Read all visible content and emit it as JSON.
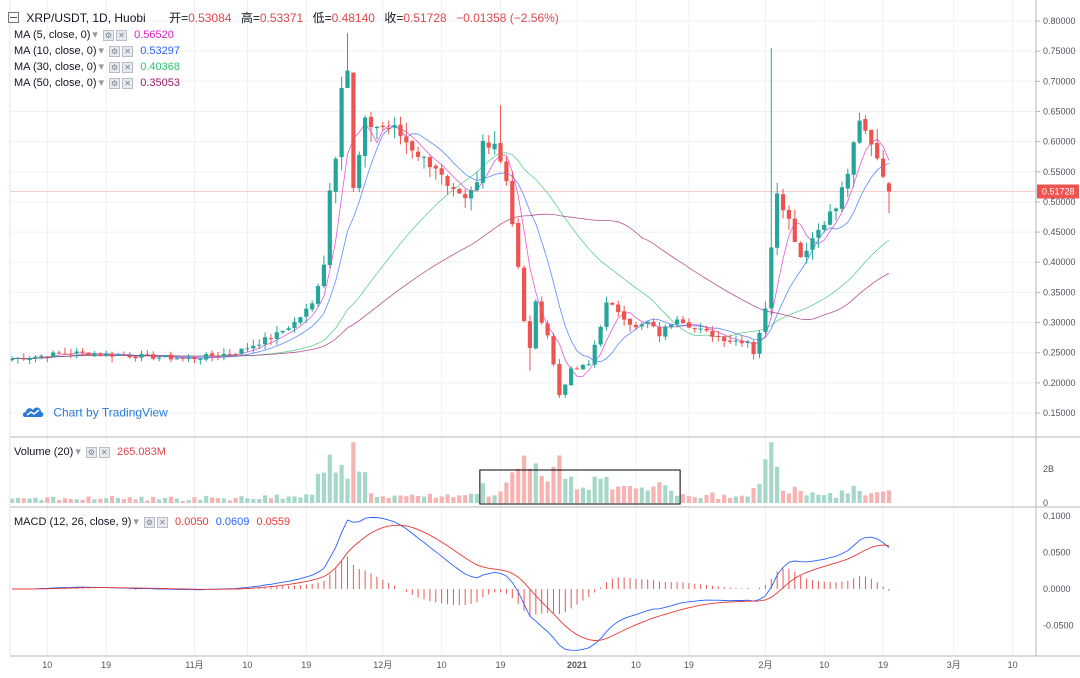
{
  "header": {
    "collapse_icon": "minus-box-icon",
    "symbol": "XRP/USDT, 1D, Huobi",
    "open_label": "开=",
    "open": "0.53084",
    "high_label": "高=",
    "high": "0.53371",
    "low_label": "低=",
    "low": "0.48140",
    "close_label": "收=",
    "close": "0.51728",
    "change": "−0.01358 (−2.56%)"
  },
  "indicators": {
    "ma5": {
      "label": "MA (5, close, 0)",
      "value": "0.56520",
      "color": "#e020c8"
    },
    "ma10": {
      "label": "MA (10, close, 0)",
      "value": "0.53297",
      "color": "#2962ff"
    },
    "ma30": {
      "label": "MA (30, close, 0)",
      "value": "0.40368",
      "color": "#2ec26a"
    },
    "ma50": {
      "label": "MA (50, close, 0)",
      "value": "0.35053",
      "color": "#9b1c6c"
    },
    "volume": {
      "label": "Volume (20)",
      "value": "265.083M"
    },
    "macd": {
      "label": "MACD (12, 26, close, 9)",
      "v1": "0.0050",
      "v2": "0.0609",
      "v3": "0.0559"
    }
  },
  "brand": {
    "text": "Chart by TradingView",
    "icon": "tradingview-cloud-icon"
  },
  "colors": {
    "up": "#26a69a",
    "down": "#ef5350",
    "up_vol": "#a5d8c9",
    "down_vol": "#f5b4b2",
    "price_line": "#ef5350",
    "macd_line": "#2962ff",
    "signal_line": "#e53935",
    "hist": "#e53935"
  },
  "price_tag": "0.51728",
  "chart_data": [
    {
      "type": "candlestick",
      "title": "XRP/USDT, 1D, Huobi",
      "ylim": [
        0.11,
        0.81
      ],
      "y_ticks": [
        "0.80000",
        "0.75000",
        "0.70000",
        "0.65000",
        "0.60000",
        "0.55000",
        "0.50000",
        "0.45000",
        "0.40000",
        "0.35000",
        "0.30000",
        "0.25000",
        "0.20000",
        "0.15000"
      ],
      "x_ticks": [
        "10",
        "19",
        "11月",
        "10",
        "19",
        "12月",
        "10",
        "19",
        "2021",
        "10",
        "19",
        "2月",
        "10",
        "19",
        "3月",
        "10"
      ],
      "series": [
        {
          "name": "MA (5, close, 0)",
          "last": 0.5652
        },
        {
          "name": "MA (10, close, 0)",
          "last": 0.53297
        },
        {
          "name": "MA (30, close, 0)",
          "last": 0.40368
        },
        {
          "name": "MA (50, close, 0)",
          "last": 0.35053
        }
      ],
      "close_anchors": [
        [
          0,
          0.24
        ],
        [
          10,
          0.25
        ],
        [
          20,
          0.245
        ],
        [
          30,
          0.24
        ],
        [
          38,
          0.25
        ],
        [
          45,
          0.28
        ],
        [
          48,
          0.3
        ],
        [
          51,
          0.33
        ],
        [
          53,
          0.4
        ],
        [
          54,
          0.52
        ],
        [
          55,
          0.58
        ],
        [
          56,
          0.7
        ],
        [
          57,
          0.72
        ],
        [
          58,
          0.52
        ],
        [
          60,
          0.63
        ],
        [
          65,
          0.62
        ],
        [
          70,
          0.57
        ],
        [
          72,
          0.56
        ],
        [
          74,
          0.52
        ],
        [
          77,
          0.5
        ],
        [
          79,
          0.53
        ],
        [
          80,
          0.6
        ],
        [
          82,
          0.6
        ],
        [
          84,
          0.54
        ],
        [
          86,
          0.39
        ],
        [
          87,
          0.3
        ],
        [
          88,
          0.26
        ],
        [
          89,
          0.33
        ],
        [
          91,
          0.28
        ],
        [
          93,
          0.18
        ],
        [
          95,
          0.22
        ],
        [
          98,
          0.23
        ],
        [
          101,
          0.33
        ],
        [
          103,
          0.32
        ],
        [
          106,
          0.29
        ],
        [
          108,
          0.3
        ],
        [
          110,
          0.28
        ],
        [
          113,
          0.31
        ],
        [
          116,
          0.29
        ],
        [
          122,
          0.27
        ],
        [
          125,
          0.27
        ],
        [
          126,
          0.25
        ],
        [
          128,
          0.32
        ],
        [
          129,
          0.43
        ],
        [
          130,
          0.52
        ],
        [
          132,
          0.47
        ],
        [
          134,
          0.41
        ],
        [
          136,
          0.44
        ],
        [
          138,
          0.47
        ],
        [
          140,
          0.49
        ],
        [
          142,
          0.55
        ],
        [
          144,
          0.63
        ],
        [
          146,
          0.6
        ],
        [
          148,
          0.55
        ],
        [
          149,
          0.51728
        ]
      ]
    },
    {
      "type": "bar",
      "title": "Volume (20)",
      "y_ticks": [
        "2B",
        "0"
      ],
      "highlight_range": [
        80,
        113
      ]
    },
    {
      "type": "line",
      "title": "MACD (12, 26, close, 9)",
      "ylim": [
        -0.09,
        0.105
      ],
      "y_ticks": [
        "0.1000",
        "0.0500",
        "0.0000",
        "-0.0500"
      ]
    }
  ]
}
